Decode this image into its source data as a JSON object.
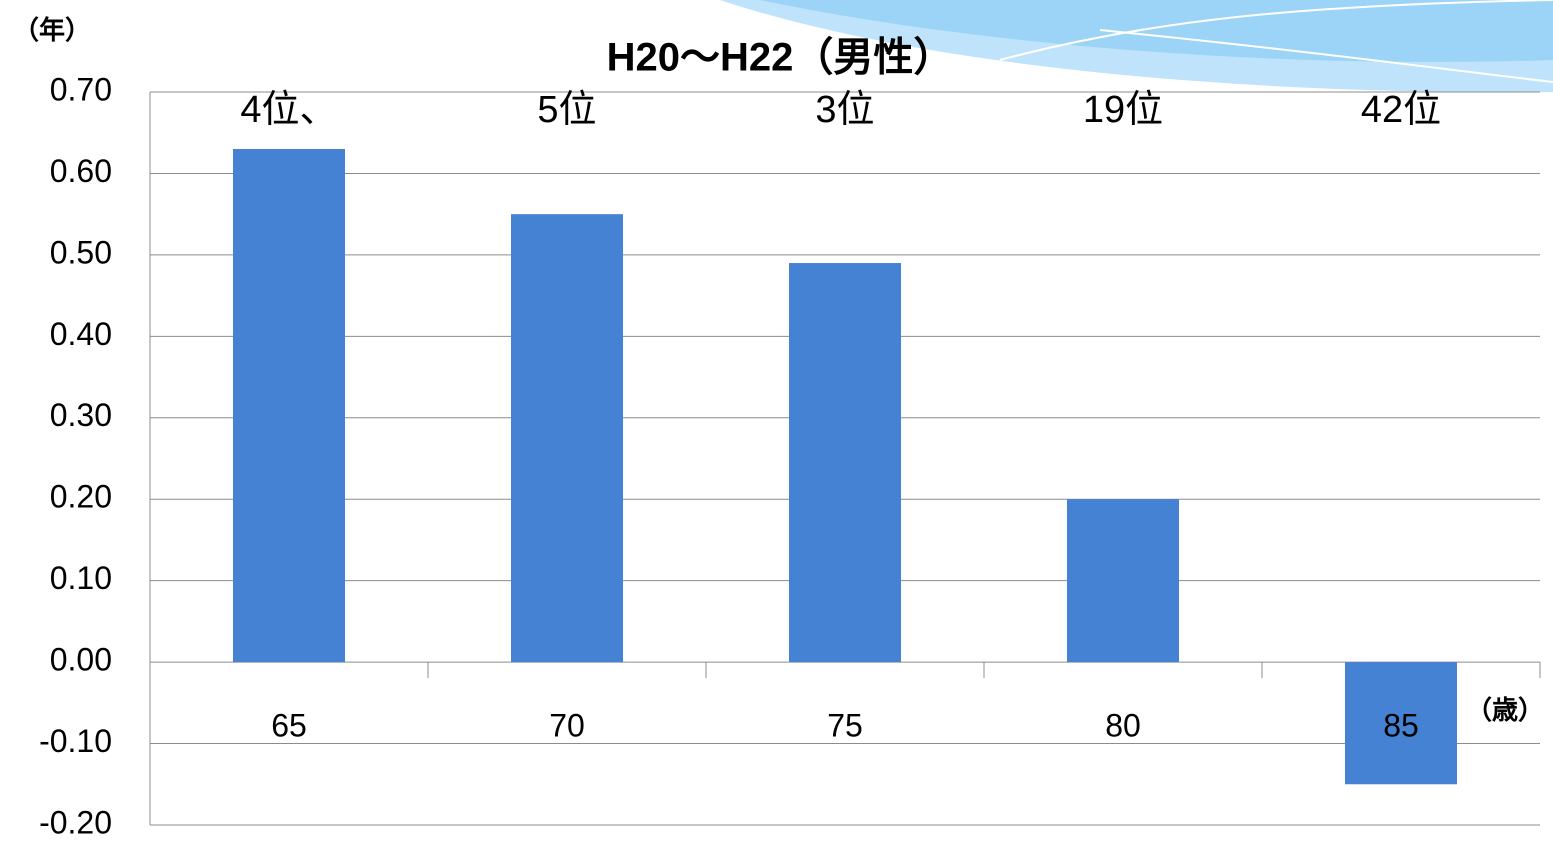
{
  "chart_data": {
    "type": "bar",
    "title": "H20～H22（男性）",
    "y_label": "（年）",
    "x_label": "（歳）",
    "categories": [
      "65",
      "70",
      "75",
      "80",
      "85"
    ],
    "values": [
      0.63,
      0.55,
      0.49,
      0.2,
      -0.15
    ],
    "annotations": [
      "4位、",
      "5位",
      "3位",
      "19位",
      "42位"
    ],
    "color": "#4582d4",
    "ylim": [
      -0.2,
      0.7
    ],
    "yticks": [
      {
        "value": -0.2,
        "label": "-0.20"
      },
      {
        "value": -0.1,
        "label": "-0.10"
      },
      {
        "value": 0,
        "label": "0.00"
      },
      {
        "value": 0.1,
        "label": "0.10"
      },
      {
        "value": 0.2,
        "label": "0.20"
      },
      {
        "value": 0.3,
        "label": "0.30"
      },
      {
        "value": 0.4,
        "label": "0.40"
      },
      {
        "value": 0.5,
        "label": "0.50"
      },
      {
        "value": 0.6,
        "label": "0.60"
      },
      {
        "value": 0.7,
        "label": "0.70"
      }
    ],
    "grid": true
  }
}
